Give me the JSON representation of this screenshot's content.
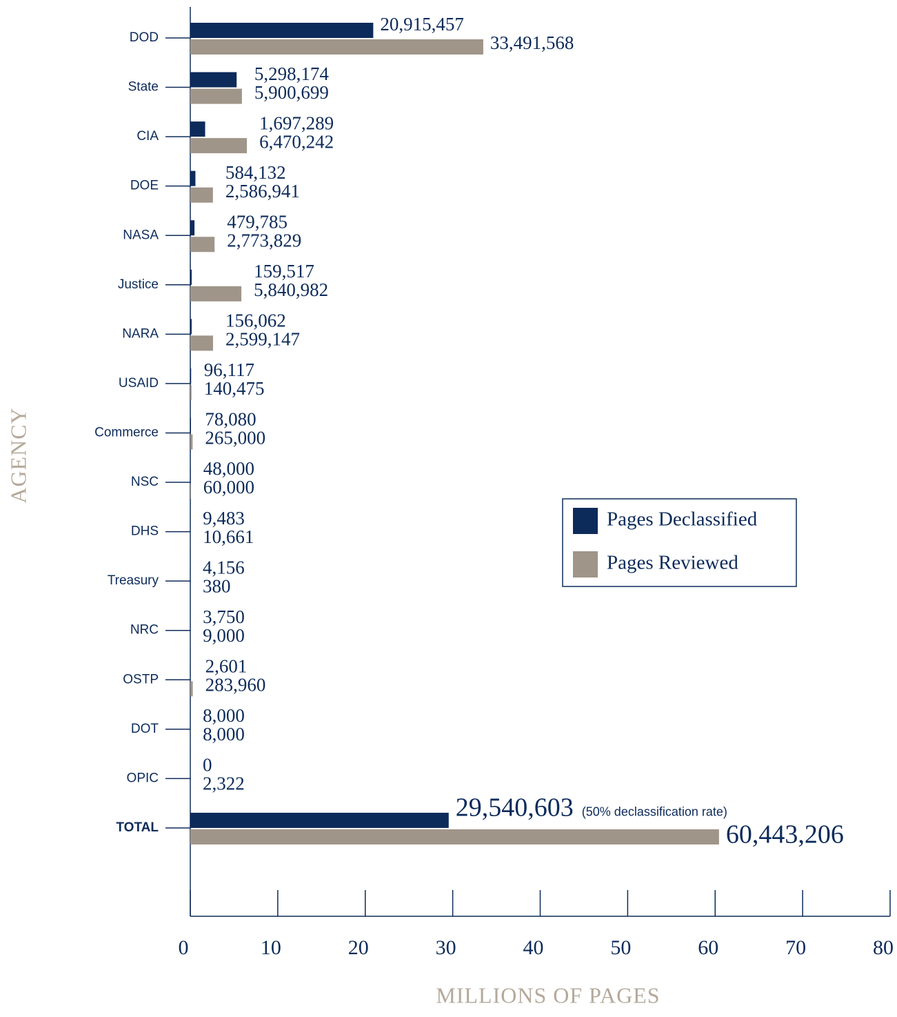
{
  "chart_data": {
    "type": "hbar",
    "categories": [
      "DOD",
      "State",
      "CIA",
      "DOE",
      "NASA",
      "Justice",
      "NARA",
      "USAID",
      "Commerce",
      "NSC",
      "DHS",
      "Treasury",
      "NRC",
      "OSTP",
      "DOT",
      "OPIC",
      "TOTAL"
    ],
    "series": [
      {
        "name": "Pages Declassified",
        "color": "#0d2b5a",
        "values": [
          20.915457,
          5.298174,
          1.697289,
          0.584132,
          0.479785,
          0.159517,
          0.156062,
          0.096117,
          0.07808,
          0.048,
          0.009483,
          0.004156,
          0.00375,
          0.002601,
          0.008,
          0,
          29.540603
        ],
        "value_labels": [
          "20,915,457",
          "5,298,174",
          "1,697,289",
          "584,132",
          "479,785",
          "159,517",
          "156,062",
          "96,117",
          "78,080",
          "48,000",
          "9,483",
          "4,156",
          "3,750",
          "2,601",
          "8,000",
          "0",
          "29,540,603"
        ]
      },
      {
        "name": "Pages Reviewed",
        "color": "#a09589",
        "values": [
          33.491568,
          5.900699,
          6.470242,
          2.586941,
          2.773829,
          5.840982,
          2.599147,
          0.140475,
          0.265,
          0.06,
          0.010661,
          0.00038,
          0.009,
          0.28396,
          0.008,
          0.002322,
          60.443206
        ],
        "value_labels": [
          "33,491,568",
          "5,900,699",
          "6,470,242",
          "2,586,941",
          "2,773,829",
          "5,840,982",
          "2,599,147",
          "140,475",
          "265,000",
          "60,000",
          "10,661",
          "380",
          "9,000",
          "283,960",
          "8,000",
          "2,322",
          "60,443,206"
        ]
      }
    ],
    "annotation": "(50% declassification rate)",
    "xlabel": "MILLIONS OF PAGES",
    "ylabel": "AGENCY",
    "xlim": [
      0,
      80
    ],
    "xticks": [
      0,
      10,
      20,
      30,
      40,
      50,
      60,
      70,
      80
    ],
    "legend": "right"
  }
}
